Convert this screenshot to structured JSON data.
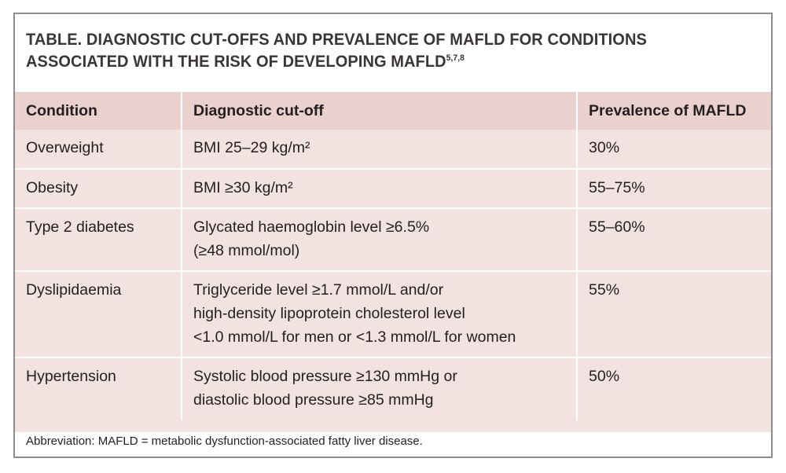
{
  "title": {
    "prefix": "TABLE.",
    "line1": " DIAGNOSTIC CUT-OFFS AND PREVALENCE OF MAFLD FOR CONDITIONS",
    "line2": "ASSOCIATED WITH THE RISK OF DEVELOPING MAFLD",
    "refs": "5,7,8"
  },
  "table": {
    "headers": [
      "Condition",
      "Diagnostic cut-off",
      "Prevalence of MAFLD"
    ],
    "rows": [
      {
        "condition": "Overweight",
        "cutoff": [
          "BMI 25–29 kg/m²"
        ],
        "prevalence": "30%"
      },
      {
        "condition": "Obesity",
        "cutoff": [
          "BMI ≥30 kg/m²"
        ],
        "prevalence": "55–75%"
      },
      {
        "condition": "Type 2 diabetes",
        "cutoff": [
          "Glycated haemoglobin level ≥6.5%",
          "(≥48 mmol/mol)"
        ],
        "prevalence": "55–60%"
      },
      {
        "condition": "Dyslipidaemia",
        "cutoff": [
          "Triglyceride level ≥1.7 mmol/L and/or",
          "high-density lipoprotein cholesterol level",
          "<1.0 mmol/L for men or <1.3 mmol/L for women"
        ],
        "prevalence": "55%"
      },
      {
        "condition": "Hypertension",
        "cutoff": [
          "Systolic blood pressure ≥130 mmHg or",
          "diastolic blood pressure ≥85 mmHg"
        ],
        "prevalence": "50%"
      }
    ]
  },
  "footnote": "Abbreviation: MAFLD = metabolic dysfunction-associated fatty liver disease.",
  "colors": {
    "header_bg": "#ead1ce",
    "row_bg": "#f2e2e0",
    "frame_border": "#8e8c8c",
    "title_text": "#3a3637"
  }
}
